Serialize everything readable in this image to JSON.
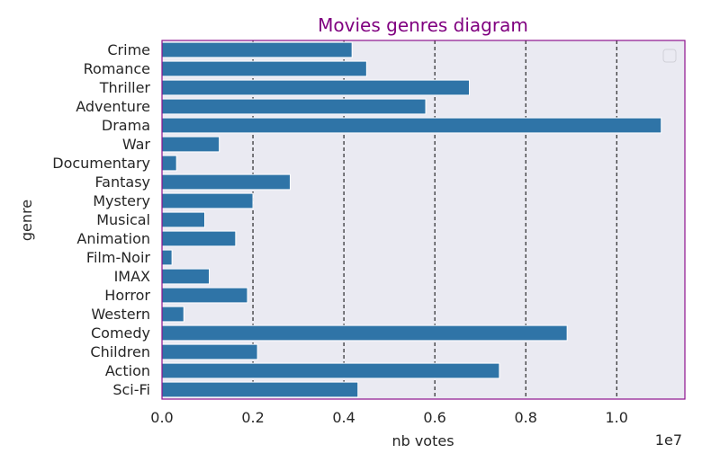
{
  "chart_data": {
    "type": "bar",
    "orientation": "horizontal",
    "title": "Movies genres diagram",
    "xlabel": "nb votes",
    "ylabel": "genre",
    "x_scale_label": "1e7",
    "x_scale_factor": 10000000,
    "xlim": [
      0,
      1.15
    ],
    "x_ticks": [
      0.0,
      0.2,
      0.4,
      0.6,
      0.8,
      1.0
    ],
    "x_tick_labels": [
      "0.0",
      "0.2",
      "0.4",
      "0.6",
      "0.8",
      "1.0"
    ],
    "categories": [
      "Crime",
      "Romance",
      "Thriller",
      "Adventure",
      "Drama",
      "War",
      "Documentary",
      "Fantasy",
      "Mystery",
      "Musical",
      "Animation",
      "Film-Noir",
      "IMAX",
      "Horror",
      "Western",
      "Comedy",
      "Children",
      "Action",
      "Sci-Fi"
    ],
    "values": [
      0.418,
      0.45,
      0.676,
      0.58,
      1.098,
      0.126,
      0.032,
      0.282,
      0.2,
      0.094,
      0.162,
      0.022,
      0.104,
      0.188,
      0.048,
      0.891,
      0.21,
      0.742,
      0.431
    ],
    "vertical_gridlines": [
      0.2,
      0.4,
      0.6,
      0.8,
      1.0
    ],
    "gridline_style": "dashed",
    "legend": "top-right, empty",
    "colors": {
      "bar": "#2f74a7",
      "plot_background": "#eaeaf2",
      "frame": "#8e128e",
      "title": "#800080",
      "gridline": "#000000",
      "text": "#262626"
    }
  }
}
